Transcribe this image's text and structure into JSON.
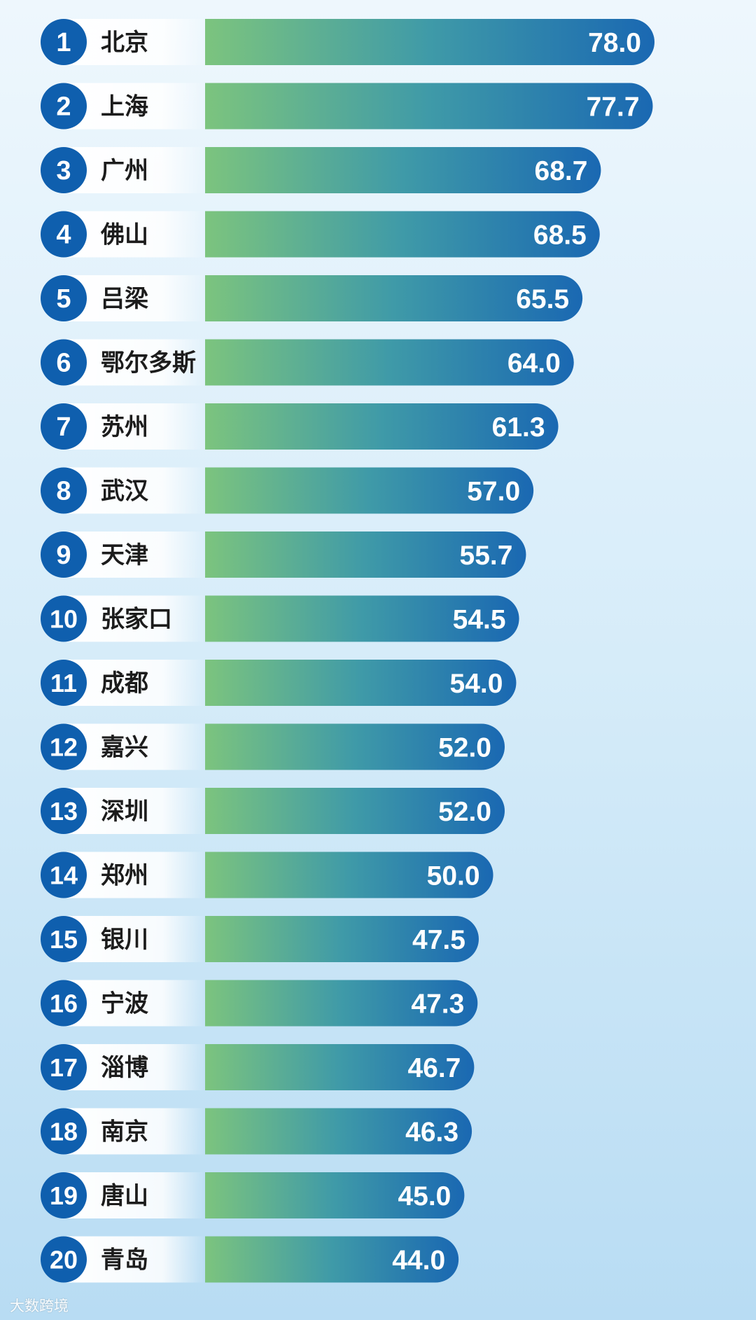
{
  "chart_data": {
    "type": "bar",
    "orientation": "horizontal",
    "ranks": [
      "1",
      "2",
      "3",
      "4",
      "5",
      "6",
      "7",
      "8",
      "9",
      "10",
      "11",
      "12",
      "13",
      "14",
      "15",
      "16",
      "17",
      "18",
      "19",
      "20"
    ],
    "categories": [
      "北京",
      "上海",
      "广州",
      "佛山",
      "吕梁",
      "鄂尔多斯",
      "苏州",
      "武汉",
      "天津",
      "张家口",
      "成都",
      "嘉兴",
      "深圳",
      "郑州",
      "银川",
      "宁波",
      "淄博",
      "南京",
      "唐山",
      "青岛"
    ],
    "values": [
      78.0,
      77.7,
      68.7,
      68.5,
      65.5,
      64.0,
      61.3,
      57.0,
      55.7,
      54.5,
      54.0,
      52.0,
      52.0,
      50.0,
      47.5,
      47.3,
      46.7,
      46.3,
      45.0,
      44.0
    ],
    "value_labels": [
      "78.0",
      "77.7",
      "68.7",
      "68.5",
      "65.5",
      "64.0",
      "61.3",
      "57.0",
      "55.7",
      "54.5",
      "54.0",
      "52.0",
      "52.0",
      "50.0",
      "47.5",
      "47.3",
      "46.7",
      "46.3",
      "45.0",
      "44.0"
    ],
    "grid": false,
    "legend": "none",
    "colors": {
      "bar_start": "#7cc47e",
      "bar_mid": "#3f9aa8",
      "bar_end": "#1a68b2",
      "badge": "#0f5fae",
      "label_text": "#1c1c1c",
      "value_text": "#ffffff"
    }
  },
  "watermark": {
    "text": "大数跨境"
  }
}
